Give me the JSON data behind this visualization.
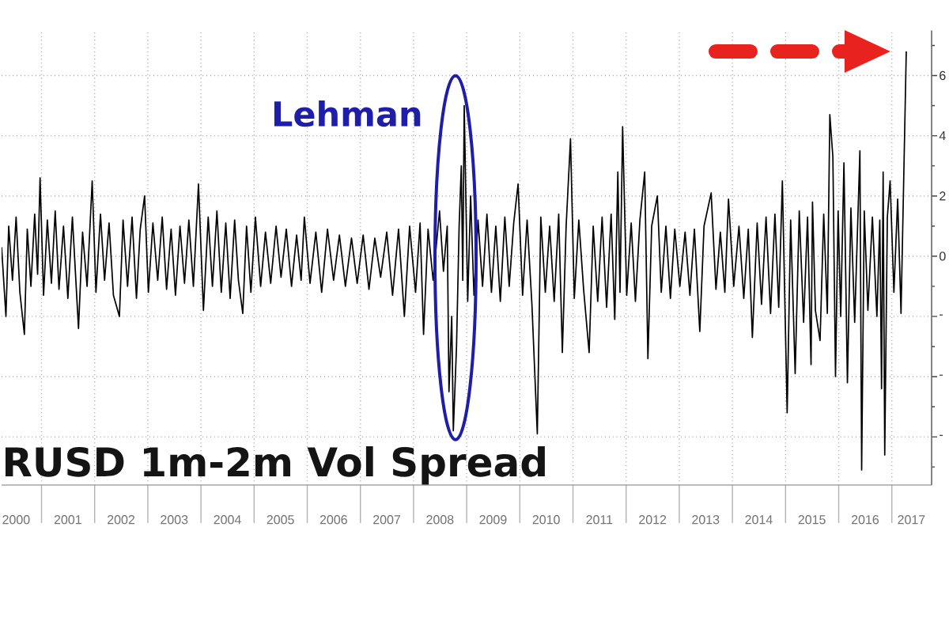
{
  "chart_data": {
    "type": "line",
    "title": "RUSD 1m-2m Vol Spread",
    "annotations": [
      {
        "text": "Lehman",
        "x": "2008-12-15",
        "y": 5.0
      }
    ],
    "color": "#000000",
    "x": [
      "2000-04-01",
      "2000-05-01",
      "2000-05-20",
      "2000-06-15",
      "2000-07-10",
      "2000-08-05",
      "2000-09-05",
      "2000-09-25",
      "2000-10-20",
      "2000-11-15",
      "2000-12-05",
      "2000-12-22",
      "2001-01-15",
      "2001-02-10",
      "2001-03-10",
      "2001-04-05",
      "2001-05-01",
      "2001-06-01",
      "2001-07-01",
      "2001-08-01",
      "2001-09-12",
      "2001-10-10",
      "2001-11-10",
      "2001-12-15",
      "2002-01-10",
      "2002-02-10",
      "2002-03-10",
      "2002-04-10",
      "2002-05-10",
      "2002-06-20",
      "2002-07-15",
      "2002-08-15",
      "2002-09-15",
      "2002-10-15",
      "2002-11-10",
      "2002-12-10",
      "2003-01-05",
      "2003-02-05",
      "2003-03-10",
      "2003-04-10",
      "2003-05-10",
      "2003-06-10",
      "2003-07-10",
      "2003-08-10",
      "2003-09-10",
      "2003-10-10",
      "2003-11-10",
      "2003-12-15",
      "2004-01-18",
      "2004-02-20",
      "2004-03-20",
      "2004-04-20",
      "2004-05-20",
      "2004-06-20",
      "2004-07-20",
      "2004-08-20",
      "2004-09-15",
      "2004-10-15",
      "2004-11-10",
      "2004-12-10",
      "2005-01-10",
      "2005-02-15",
      "2005-03-20",
      "2005-04-25",
      "2005-06-01",
      "2005-07-05",
      "2005-08-10",
      "2005-09-15",
      "2005-10-20",
      "2005-11-20",
      "2005-12-12",
      "2006-01-20",
      "2006-03-01",
      "2006-04-10",
      "2006-05-20",
      "2006-07-01",
      "2006-08-10",
      "2006-09-20",
      "2006-11-01",
      "2006-12-10",
      "2007-01-20",
      "2007-03-01",
      "2007-04-10",
      "2007-05-20",
      "2007-07-01",
      "2007-08-10",
      "2007-09-20",
      "2007-10-30",
      "2007-12-05",
      "2008-01-15",
      "2008-02-15",
      "2008-03-10",
      "2008-04-10",
      "2008-05-15",
      "2008-06-28",
      "2008-07-25",
      "2008-08-20",
      "2008-09-01",
      "2008-09-20",
      "2008-10-01",
      "2008-10-23",
      "2008-11-10",
      "2008-11-25",
      "2008-12-05",
      "2008-12-15",
      "2009-01-08",
      "2009-01-28",
      "2009-02-20",
      "2009-03-20",
      "2009-04-20",
      "2009-05-20",
      "2009-06-20",
      "2009-07-20",
      "2009-08-20",
      "2009-09-20",
      "2009-10-20",
      "2009-11-20",
      "2009-12-20",
      "2010-01-20",
      "2010-02-20",
      "2010-03-25",
      "2010-05-01",
      "2010-05-25",
      "2010-06-25",
      "2010-07-25",
      "2010-08-25",
      "2010-09-25",
      "2010-10-20",
      "2010-11-15",
      "2010-12-15",
      "2011-01-10",
      "2011-02-10",
      "2011-03-15",
      "2011-04-22",
      "2011-05-20",
      "2011-06-20",
      "2011-07-20",
      "2011-08-20",
      "2011-09-20",
      "2011-10-15",
      "2011-11-05",
      "2011-11-20",
      "2011-12-08",
      "2012-01-05",
      "2012-02-05",
      "2012-03-05",
      "2012-04-05",
      "2012-05-08",
      "2012-05-30",
      "2012-06-25",
      "2012-08-03",
      "2012-08-30",
      "2012-10-01",
      "2012-11-01",
      "2012-12-01",
      "2013-01-05",
      "2013-02-10",
      "2013-03-15",
      "2013-04-15",
      "2013-05-22",
      "2013-06-20",
      "2013-08-08",
      "2013-09-10",
      "2013-10-10",
      "2013-11-10",
      "2013-12-05",
      "2014-01-10",
      "2014-02-15",
      "2014-03-20",
      "2014-04-20",
      "2014-05-18",
      "2014-06-20",
      "2014-07-20",
      "2014-08-20",
      "2014-09-20",
      "2014-10-20",
      "2014-11-15",
      "2014-12-10",
      "2015-01-12",
      "2015-02-05",
      "2015-03-08",
      "2015-04-05",
      "2015-05-05",
      "2015-06-01",
      "2015-06-25",
      "2015-07-05",
      "2015-07-25",
      "2015-08-26",
      "2015-09-20",
      "2015-10-15",
      "2015-11-01",
      "2015-11-22",
      "2015-12-10",
      "2015-12-28",
      "2016-01-15",
      "2016-02-06",
      "2016-03-01",
      "2016-03-25",
      "2016-04-20",
      "2016-05-26",
      "2016-06-07",
      "2016-06-25",
      "2016-07-20",
      "2016-08-20",
      "2016-09-20",
      "2016-10-10",
      "2016-10-22",
      "2016-11-02",
      "2016-11-13",
      "2016-12-01",
      "2016-12-20",
      "2017-01-15",
      "2017-02-10",
      "2017-03-05",
      "2017-04-10"
    ],
    "values": [
      0.3,
      -2.0,
      1.0,
      -0.8,
      1.3,
      -1.2,
      -2.6,
      0.9,
      -1.0,
      1.4,
      -0.6,
      2.6,
      -1.3,
      1.2,
      -0.9,
      1.5,
      -1.1,
      1.0,
      -1.4,
      1.3,
      -2.4,
      0.8,
      -1.0,
      2.5,
      -1.2,
      1.4,
      -0.8,
      1.1,
      -1.3,
      -2.0,
      1.2,
      -1.0,
      1.3,
      -1.4,
      0.9,
      2.0,
      -1.2,
      1.1,
      -0.8,
      1.3,
      -1.1,
      0.9,
      -1.3,
      1.0,
      -0.9,
      1.2,
      -1.0,
      2.4,
      -1.8,
      1.3,
      -1.0,
      1.5,
      -1.2,
      1.1,
      -1.4,
      1.2,
      -0.8,
      -1.9,
      1.0,
      -1.2,
      1.3,
      -1.0,
      0.8,
      -0.9,
      1.0,
      -0.7,
      0.9,
      -1.0,
      0.7,
      -0.8,
      1.3,
      -0.9,
      0.8,
      -1.2,
      0.9,
      -0.8,
      0.7,
      -1.0,
      0.6,
      -0.9,
      0.7,
      -1.1,
      0.6,
      -0.7,
      0.8,
      -1.3,
      0.9,
      -2.0,
      1.0,
      -1.2,
      1.1,
      -2.6,
      0.9,
      -0.8,
      1.5,
      -0.5,
      1.0,
      -4.5,
      -2.0,
      -5.8,
      -3.0,
      1.0,
      3.0,
      -0.8,
      5.0,
      -1.5,
      2.0,
      -1.3,
      1.2,
      -1.0,
      1.4,
      -1.2,
      1.0,
      -1.5,
      1.3,
      -1.0,
      1.1,
      2.4,
      -1.3,
      1.2,
      -1.6,
      -5.9,
      1.3,
      -1.2,
      1.0,
      -1.5,
      1.4,
      -3.2,
      1.0,
      3.9,
      -1.4,
      1.2,
      -1.1,
      -3.2,
      1.0,
      -1.5,
      1.3,
      -1.7,
      1.4,
      -2.1,
      2.8,
      -1.2,
      4.3,
      -1.3,
      1.1,
      -1.5,
      1.2,
      2.8,
      -3.4,
      1.0,
      2.0,
      -1.2,
      1.0,
      -1.4,
      0.9,
      -1.0,
      0.8,
      -1.3,
      0.9,
      -2.5,
      1.0,
      2.1,
      -1.1,
      0.8,
      -1.2,
      1.9,
      -1.0,
      1.0,
      -1.4,
      0.9,
      -2.7,
      1.1,
      -1.6,
      1.3,
      -1.9,
      1.4,
      -1.7,
      2.5,
      -5.2,
      1.2,
      -3.9,
      1.5,
      -2.2,
      1.3,
      -3.6,
      1.8,
      -1.8,
      -2.8,
      1.4,
      -1.9,
      4.7,
      3.3,
      -4.0,
      1.5,
      -2.0,
      3.1,
      -4.2,
      1.6,
      -2.2,
      3.5,
      -7.1,
      1.5,
      -1.8,
      1.3,
      -2.0,
      1.2,
      -4.4,
      2.8,
      -6.6,
      1.3,
      2.5,
      -1.2,
      1.9,
      -1.9,
      6.8
    ],
    "xlim": [
      "2000-04",
      "2017-10"
    ],
    "ylim": [
      -7.6,
      7.5
    ],
    "xticks": [
      {
        "value": "2000-07-10",
        "label": "2000"
      },
      {
        "value": "2001",
        "label": null
      },
      {
        "value": "2001-07",
        "label": "2001"
      },
      {
        "value": "2002",
        "label": null
      },
      {
        "value": "2002-07",
        "label": "2002"
      },
      {
        "value": "2003",
        "label": null
      },
      {
        "value": "2003-07",
        "label": "2003"
      },
      {
        "value": "2004",
        "label": null
      },
      {
        "value": "2004-07",
        "label": "2004"
      },
      {
        "value": "2005",
        "label": null
      },
      {
        "value": "2005-07",
        "label": "2005"
      },
      {
        "value": "2006",
        "label": null
      },
      {
        "value": "2006-07",
        "label": "2006"
      },
      {
        "value": "2007",
        "label": null
      },
      {
        "value": "2007-07",
        "label": "2007"
      },
      {
        "value": "2008",
        "label": null
      },
      {
        "value": "2008-07",
        "label": "2008"
      },
      {
        "value": "2009",
        "label": null
      },
      {
        "value": "2009-07",
        "label": "2009"
      },
      {
        "value": "2010",
        "label": null
      },
      {
        "value": "2010-07",
        "label": "2010"
      },
      {
        "value": "2011",
        "label": null
      },
      {
        "value": "2011-07",
        "label": "2011"
      },
      {
        "value": "2012",
        "label": null
      },
      {
        "value": "2012-07",
        "label": "2012"
      },
      {
        "value": "2013",
        "label": null
      },
      {
        "value": "2013-07",
        "label": "2013"
      },
      {
        "value": "2014",
        "label": null
      },
      {
        "value": "2014-07",
        "label": "2014"
      },
      {
        "value": "2015",
        "label": null
      },
      {
        "value": "2015-07",
        "label": "2015"
      },
      {
        "value": "2016",
        "label": null
      },
      {
        "value": "2016-07",
        "label": "2016"
      },
      {
        "value": "2017",
        "label": null
      },
      {
        "value": "2017-05-15",
        "label": "2017"
      }
    ],
    "yticks": [
      {
        "value": 7,
        "label": null
      },
      6,
      {
        "value": 5,
        "label": null
      },
      4,
      {
        "value": 3,
        "label": null
      },
      2,
      {
        "value": 1,
        "label": null
      },
      0,
      {
        "value": -1,
        "label": null
      },
      {
        "value": -2,
        "label": "-"
      },
      {
        "value": -3,
        "label": null
      },
      {
        "value": -4,
        "label": "-"
      },
      {
        "value": -5,
        "label": null
      },
      {
        "value": -6,
        "label": "-"
      },
      {
        "value": -7,
        "label": null
      }
    ],
    "grid": true
  }
}
